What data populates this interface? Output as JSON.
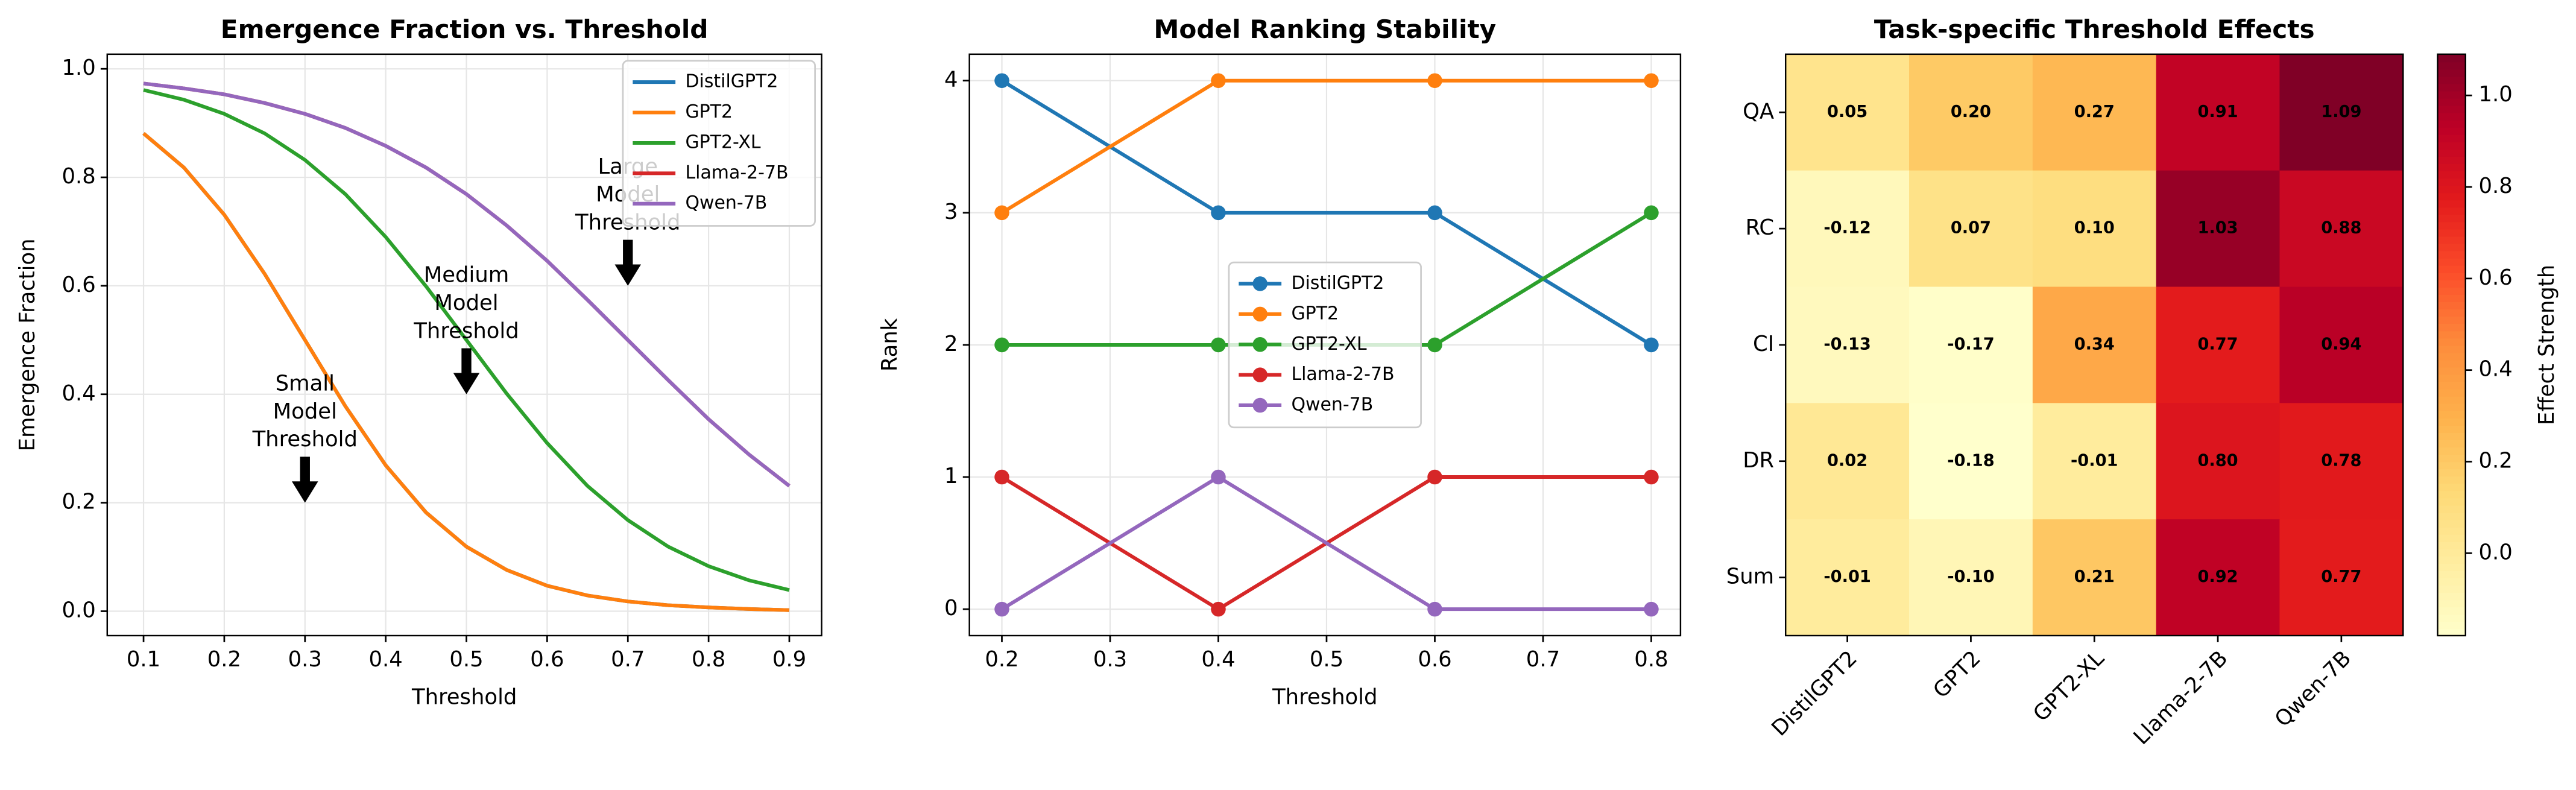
{
  "chart_data": [
    {
      "type": "line",
      "title": "Emergence Fraction vs. Threshold",
      "xlabel": "Threshold",
      "ylabel": "Emergence Fraction",
      "x": [
        0.1,
        0.15,
        0.2,
        0.25,
        0.3,
        0.35,
        0.4,
        0.45,
        0.5,
        0.55,
        0.6,
        0.65,
        0.7,
        0.75,
        0.8,
        0.85,
        0.9
      ],
      "series": [
        {
          "name": "DistilGPT2",
          "color": "#1f77b4",
          "values": [
            0.881,
            0.818,
            0.731,
            0.622,
            0.5,
            0.378,
            0.269,
            0.182,
            0.119,
            0.076,
            0.047,
            0.029,
            0.018,
            0.011,
            0.007,
            0.004,
            0.002
          ]
        },
        {
          "name": "GPT2",
          "color": "#ff7f0e",
          "values": [
            0.881,
            0.818,
            0.731,
            0.622,
            0.5,
            0.378,
            0.269,
            0.182,
            0.119,
            0.076,
            0.047,
            0.029,
            0.018,
            0.011,
            0.007,
            0.004,
            0.002
          ]
        },
        {
          "name": "GPT2-XL",
          "color": "#2ca02c",
          "values": [
            0.961,
            0.943,
            0.917,
            0.881,
            0.832,
            0.769,
            0.69,
            0.599,
            0.5,
            0.401,
            0.31,
            0.231,
            0.168,
            0.119,
            0.083,
            0.057,
            0.039
          ]
        },
        {
          "name": "Llama-2-7B",
          "color": "#d62728",
          "values": [
            0.973,
            0.964,
            0.953,
            0.937,
            0.917,
            0.891,
            0.858,
            0.818,
            0.769,
            0.711,
            0.646,
            0.574,
            0.5,
            0.426,
            0.354,
            0.289,
            0.231
          ]
        },
        {
          "name": "Qwen-7B",
          "color": "#9467bd",
          "values": [
            0.973,
            0.964,
            0.953,
            0.937,
            0.917,
            0.891,
            0.858,
            0.818,
            0.769,
            0.711,
            0.646,
            0.574,
            0.5,
            0.426,
            0.354,
            0.289,
            0.231
          ]
        }
      ],
      "xlim": [
        0.055,
        0.94
      ],
      "xticks": [
        0.1,
        0.2,
        0.3,
        0.4,
        0.5,
        0.6,
        0.7,
        0.8,
        0.9
      ],
      "ylim": [
        -0.045,
        1.027
      ],
      "yticks": [
        {
          "value": 0,
          "label": "0.0"
        },
        0.2,
        0.4,
        0.6,
        0.8,
        {
          "value": 1,
          "label": "1.0"
        }
      ],
      "grid": true,
      "legend": "upper right",
      "markers": false,
      "annotations": [
        {
          "lines": [
            "Small",
            "Model",
            "Threshold"
          ],
          "x": 0.3,
          "y": 0.2
        },
        {
          "lines": [
            "Medium",
            "Model",
            "Threshold"
          ],
          "x": 0.5,
          "y": 0.4
        },
        {
          "lines": [
            "Large",
            "Model",
            "Threshold"
          ],
          "x": 0.7,
          "y": 0.6
        }
      ]
    },
    {
      "type": "line",
      "title": "Model Ranking Stability",
      "xlabel": "Threshold",
      "ylabel": "Rank",
      "x": [
        0.2,
        0.4,
        0.6,
        0.8
      ],
      "series": [
        {
          "name": "DistilGPT2",
          "color": "#1f77b4",
          "values": [
            4,
            3,
            3,
            2
          ]
        },
        {
          "name": "GPT2",
          "color": "#ff7f0e",
          "values": [
            3,
            4,
            4,
            4
          ]
        },
        {
          "name": "GPT2-XL",
          "color": "#2ca02c",
          "values": [
            2,
            2,
            2,
            3
          ]
        },
        {
          "name": "Llama-2-7B",
          "color": "#d62728",
          "values": [
            1,
            0,
            1,
            1
          ]
        },
        {
          "name": "Qwen-7B",
          "color": "#9467bd",
          "values": [
            0,
            1,
            0,
            0
          ]
        }
      ],
      "xlim": [
        0.17,
        0.827
      ],
      "xticks": [
        0.2,
        0.3,
        0.4,
        0.5,
        0.6,
        0.7,
        0.8
      ],
      "ylim": [
        -0.2,
        4.2
      ],
      "yticks": [
        0,
        1,
        2,
        3,
        4
      ],
      "grid": true,
      "legend": "center",
      "markers": true
    },
    {
      "type": "heatmap",
      "title": "Task-specific Threshold Effects",
      "x_categories": [
        "DistilGPT2",
        "GPT2",
        "GPT2-XL",
        "Llama-2-7B",
        "Qwen-7B"
      ],
      "y_categories": [
        "QA",
        "RC",
        "CI",
        "DR",
        "Sum"
      ],
      "values": [
        [
          0.05,
          0.2,
          0.27,
          0.91,
          1.09
        ],
        [
          -0.12,
          0.07,
          0.1,
          1.03,
          0.88
        ],
        [
          -0.13,
          -0.17,
          0.34,
          0.77,
          0.94
        ],
        [
          0.02,
          -0.18,
          -0.01,
          0.8,
          0.78
        ],
        [
          -0.01,
          -0.1,
          0.21,
          0.92,
          0.77
        ]
      ],
      "value_labels": [
        [
          "0.05",
          "0.20",
          "0.27",
          "0.91",
          "1.09"
        ],
        [
          "-0.12",
          "0.07",
          "0.10",
          "1.03",
          "0.88"
        ],
        [
          "-0.13",
          "-0.17",
          "0.34",
          "0.77",
          "0.94"
        ],
        [
          "0.02",
          "-0.18",
          "-0.01",
          "0.80",
          "0.78"
        ],
        [
          "-0.01",
          "-0.10",
          "0.21",
          "0.92",
          "0.77"
        ]
      ],
      "colormap": [
        "#ffffcc",
        "#ffeda0",
        "#fed976",
        "#feb24c",
        "#fd8d3c",
        "#fc4e2a",
        "#e31a1c",
        "#bd0026",
        "#800026"
      ],
      "colorbar": {
        "label": "Effect Strength",
        "lim": [
          -0.18,
          1.09
        ],
        "ticks": [
          {
            "value": 0,
            "label": "0.0"
          },
          0.2,
          0.4,
          0.6,
          0.8,
          {
            "value": 1,
            "label": "1.0"
          }
        ]
      }
    }
  ]
}
